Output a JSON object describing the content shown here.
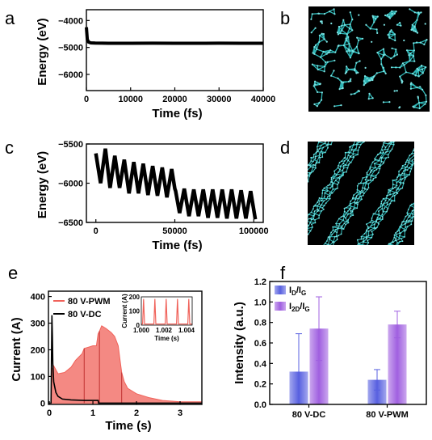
{
  "chart_data": [
    {
      "id": "a",
      "panel_label": "a",
      "type": "line",
      "xlabel": "Time (fs)",
      "ylabel": "Energy (eV)",
      "xlim": [
        0,
        40000
      ],
      "ylim": [
        -6600,
        -3600
      ],
      "x_ticks": [
        0,
        10000,
        20000,
        30000,
        40000
      ],
      "y_ticks": [
        -6000,
        -5000,
        -4000
      ],
      "series": [
        {
          "x": [
            0,
            200,
            500,
            1000,
            2000,
            5000,
            10000,
            15000,
            20000,
            25000,
            30000,
            35000,
            40000
          ],
          "y": [
            -4250,
            -4700,
            -4800,
            -4830,
            -4840,
            -4845,
            -4845,
            -4842,
            -4845,
            -4846,
            -4843,
            -4845,
            -4845
          ],
          "color": "#000000"
        }
      ]
    },
    {
      "id": "b",
      "panel_label": "b",
      "type": "image",
      "description_icon": "amorphous-carbon-network"
    },
    {
      "id": "c",
      "panel_label": "c",
      "type": "line",
      "xlabel": "Time (fs)",
      "ylabel": "Energy (eV)",
      "xlim": [
        -6000,
        106000
      ],
      "ylim": [
        -6500,
        -5500
      ],
      "x_ticks": [
        0,
        50000,
        100000
      ],
      "y_ticks": [
        -6500,
        -6000,
        -5500
      ],
      "series": [
        {
          "x": [
            0,
            3000,
            6000,
            9000,
            12000,
            15000,
            18000,
            21000,
            24000,
            27000,
            30000,
            33000,
            36000,
            39000,
            42000,
            45000,
            48000,
            50000,
            50500,
            53000,
            56000,
            59000,
            62000,
            65000,
            68000,
            71000,
            74000,
            77000,
            80000,
            83000,
            86000,
            89000,
            92000,
            95000,
            98000,
            101000
          ],
          "y": [
            -5620,
            -6000,
            -5560,
            -6060,
            -5650,
            -6060,
            -5700,
            -6130,
            -5730,
            -6130,
            -5750,
            -6150,
            -5780,
            -6160,
            -5800,
            -6180,
            -5820,
            -6070,
            -6100,
            -6380,
            -6070,
            -6420,
            -6080,
            -6420,
            -6080,
            -6440,
            -6080,
            -6440,
            -6080,
            -6450,
            -6080,
            -6450,
            -6090,
            -6450,
            -6100,
            -6460
          ],
          "color": "#000000"
        }
      ]
    },
    {
      "id": "d",
      "panel_label": "d",
      "type": "image",
      "description_icon": "aligned-carbon-chains"
    },
    {
      "id": "e",
      "panel_label": "e",
      "type": "area",
      "xlabel": "Time (s)",
      "ylabel": "Current (A)",
      "xlim": [
        -0.02,
        3.5
      ],
      "ylim": [
        -5,
        420
      ],
      "x_ticks": [
        0,
        1,
        2,
        3
      ],
      "y_ticks": [
        0,
        100,
        200,
        300,
        400
      ],
      "legend_position": "top-left",
      "series": [
        {
          "name": "80 V-PWM",
          "color": "#f0625a",
          "x": [
            0.04,
            0.05,
            0.07,
            0.1,
            0.2,
            0.35,
            0.5,
            0.6,
            0.75,
            0.8,
            0.9,
            1.0,
            1.08,
            1.12,
            1.15,
            1.2,
            1.3,
            1.42,
            1.5,
            1.58,
            1.62,
            1.66,
            1.72,
            1.8,
            2.0,
            2.3,
            2.6,
            3.0,
            3.5
          ],
          "y": [
            0,
            50,
            130,
            140,
            110,
            115,
            135,
            160,
            185,
            205,
            210,
            215,
            215,
            260,
            270,
            290,
            280,
            265,
            250,
            215,
            165,
            115,
            80,
            55,
            35,
            20,
            10,
            5,
            5
          ]
        },
        {
          "name": "80 V-DC",
          "color": "#000000",
          "x": [
            0.04,
            0.06,
            0.07,
            0.08,
            0.1,
            0.15,
            0.2,
            0.3,
            0.5,
            0.8,
            1.0,
            1.12,
            1.13,
            1.2,
            1.5,
            2.0,
            2.5,
            3.0,
            3.5
          ],
          "y": [
            0,
            330,
            250,
            150,
            80,
            40,
            25,
            15,
            12,
            10,
            10,
            10,
            0,
            0,
            0,
            0,
            0,
            0,
            0
          ]
        }
      ],
      "inset": {
        "type": "line",
        "xlabel": "Time (s)",
        "ylabel": "Current (A)",
        "xlim": [
          1.0,
          1.0045
        ],
        "ylim": [
          0,
          200
        ],
        "x_ticks": [
          "1.000",
          "1.002",
          "1.004"
        ],
        "y_ticks": [
          0,
          100,
          200
        ],
        "color": "#f0625a",
        "peaks_x": [
          1.0002,
          1.0012,
          1.0022,
          1.0032,
          1.0042
        ],
        "peak_y": 185,
        "base_y": 8
      }
    },
    {
      "id": "f",
      "panel_label": "f",
      "type": "bar",
      "xlabel": "",
      "ylabel": "Intensity (a.u.)",
      "categories": [
        "80 V-DC",
        "80 V-PWM"
      ],
      "ylim": [
        0,
        1.2
      ],
      "y_ticks": [
        "0.0",
        "0.2",
        "0.4",
        "0.6",
        "0.8",
        "1.0",
        "1.2"
      ],
      "legend_position": "top-left",
      "series": [
        {
          "name": "I_D/I_G",
          "label_main": "I",
          "label_sub1": "D",
          "label_mid": "/I",
          "label_sub2": "G",
          "color": "#5860e0",
          "values": [
            0.32,
            0.24
          ],
          "errors": [
            0.37,
            0.1
          ]
        },
        {
          "name": "I_2D/I_G",
          "label_main": "I",
          "label_sub1": "2D",
          "label_mid": "/I",
          "label_sub2": "G",
          "color": "#a060e0",
          "values": [
            0.74,
            0.78
          ],
          "errors": [
            0.31,
            0.13
          ]
        }
      ]
    }
  ]
}
